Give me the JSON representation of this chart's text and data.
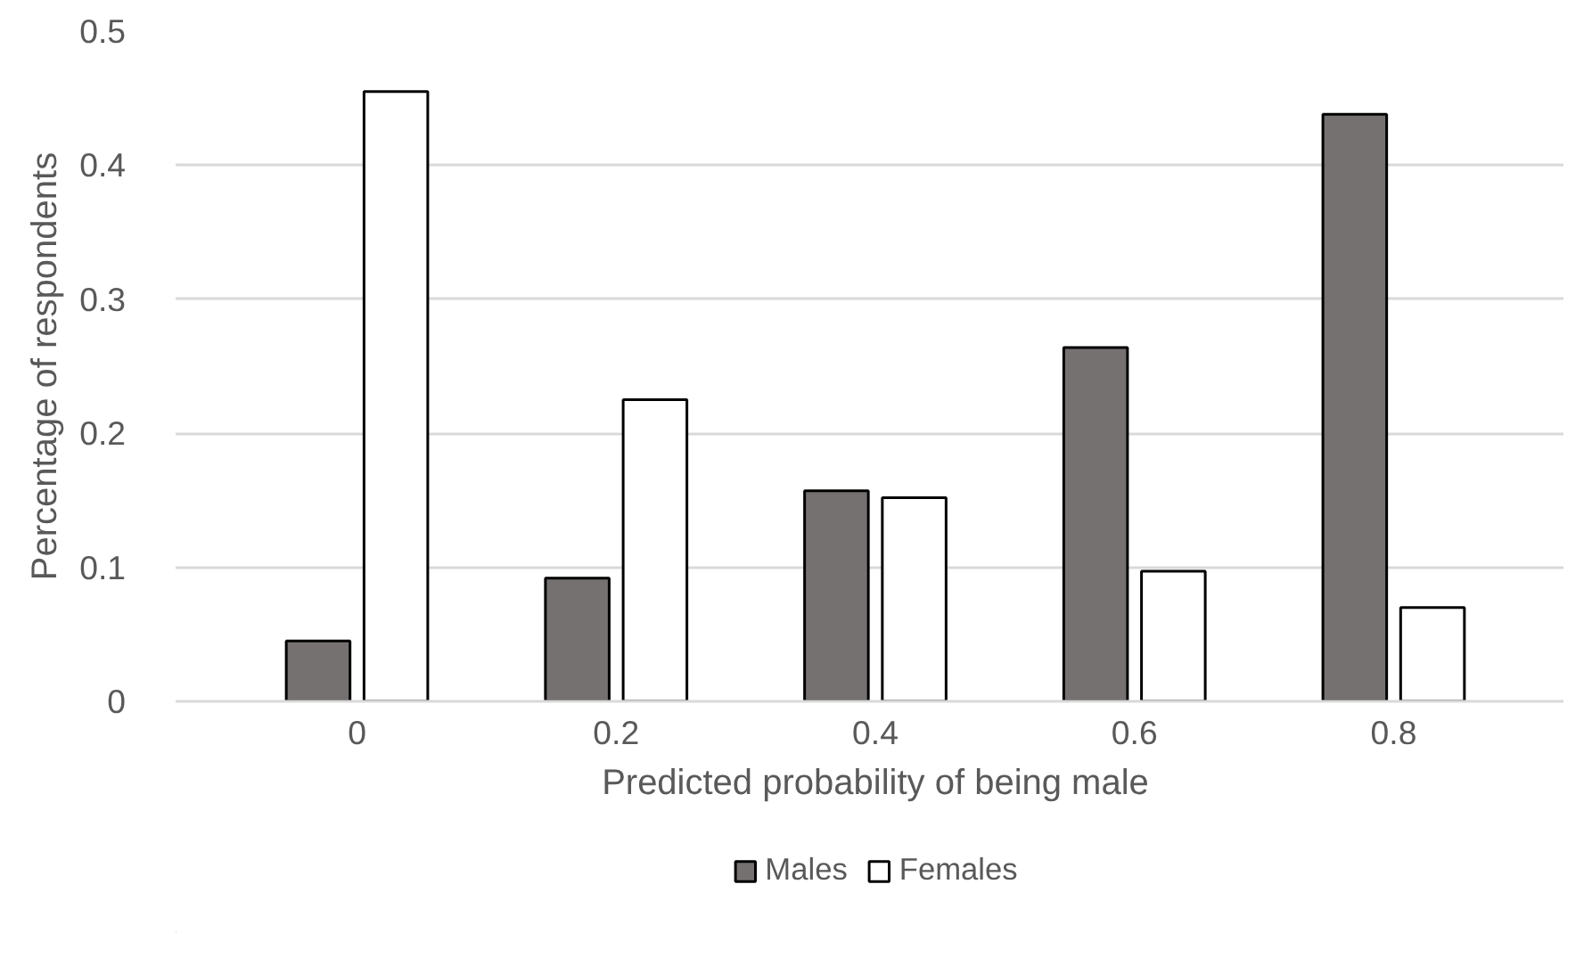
{
  "chart_data": {
    "type": "bar",
    "xlabel": "Predicted probability of being male",
    "ylabel": "Percentage of respondents",
    "categories": [
      "0",
      "0.2",
      "0.4",
      "0.6",
      "0.8"
    ],
    "series": [
      {
        "name": "Males",
        "color": "#767171",
        "values": [
          0.045,
          0.092,
          0.157,
          0.264,
          0.438
        ]
      },
      {
        "name": "Females",
        "color": "#ffffff",
        "values": [
          0.455,
          0.225,
          0.152,
          0.097,
          0.07
        ]
      }
    ],
    "ylim": [
      0,
      0.5
    ],
    "yticks": [
      0,
      0.1,
      0.2,
      0.3,
      0.4,
      0.5
    ],
    "grid": "y",
    "legend": "bottom"
  }
}
